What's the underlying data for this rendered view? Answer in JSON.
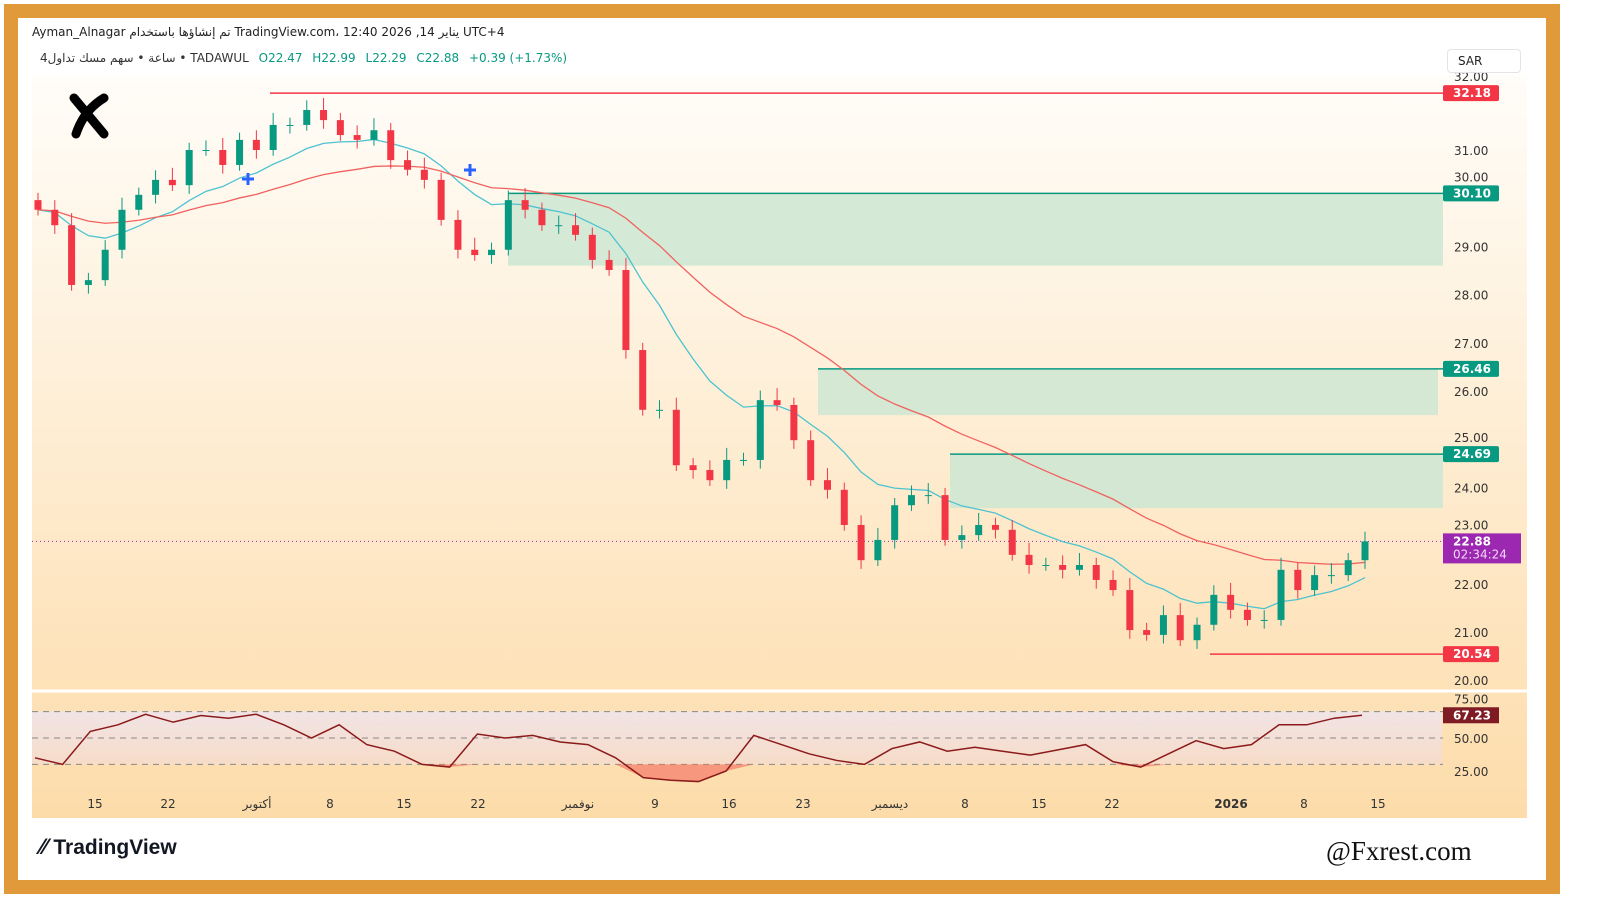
{
  "header": {
    "line1": "Ayman_Alnagar تم إنشاؤها باستخدام TradingView.com، 12:40 2026 ,14 يناير UTC+4",
    "symbol": "4ساعة • سهم مسك تداول • TADAWUL",
    "open": "O22.47",
    "high": "H22.99",
    "low": "L22.29",
    "close": "C22.88",
    "change": "+0.39 (+1.73%)"
  },
  "currency": "SAR",
  "footer": {
    "brand": "TradingView",
    "watermark": "@Fxrest.com"
  },
  "colors": {
    "up": "#089981",
    "down": "#F23645",
    "fast_ma": "#4DC3D0",
    "slow_ma": "#F0625F",
    "zone": "#CDE6D2",
    "current": "#9C27B0",
    "border": "#E09A3A"
  },
  "chart_data": {
    "type": "candlestick",
    "timeframe": "4h",
    "ylim": [
      19.8,
      32.6
    ],
    "y_ticks": [
      "20.00",
      "21.00",
      "22.00",
      "23.00",
      "24.00",
      "25.00",
      "26.00",
      "27.00",
      "28.00",
      "29.00",
      "30.00",
      "31.00",
      "32.00"
    ],
    "x_ticks": [
      "15",
      "22",
      "أكتوبر",
      "8",
      "15",
      "22",
      "نوفمبر",
      "9",
      "16",
      "23",
      "ديسمبر",
      "8",
      "15",
      "22",
      "2026",
      "8",
      "15"
    ],
    "closes": [
      29.76,
      29.44,
      28.2,
      28.3,
      28.93,
      29.76,
      30.07,
      30.38,
      30.27,
      31.0,
      31.0,
      30.69,
      31.21,
      31.0,
      31.52,
      31.52,
      31.83,
      31.62,
      31.31,
      31.21,
      31.41,
      30.79,
      30.59,
      30.38,
      29.55,
      28.93,
      28.82,
      28.93,
      29.96,
      29.76,
      29.44,
      29.44,
      29.24,
      28.72,
      28.51,
      26.85,
      25.61,
      25.61,
      24.46,
      24.36,
      24.15,
      24.57,
      24.57,
      25.81,
      25.71,
      24.98,
      24.15,
      23.95,
      23.22,
      22.49,
      22.91,
      23.63,
      23.84,
      23.84,
      22.91,
      23.01,
      23.22,
      23.12,
      22.6,
      22.39,
      22.39,
      22.29,
      22.39,
      22.08,
      21.87,
      21.04,
      20.94,
      21.35,
      20.83,
      21.15,
      21.77,
      21.46,
      21.25,
      21.25,
      22.29,
      21.87,
      22.18,
      22.18,
      22.49,
      22.88
    ],
    "levels": [
      {
        "price": 32.18,
        "label": "32.18",
        "color": "#F23645"
      },
      {
        "price": 20.54,
        "label": "20.54",
        "color": "#F23645"
      }
    ],
    "zones": [
      {
        "top": 30.1,
        "bottom": 28.6,
        "label": "30.10"
      },
      {
        "top": 26.46,
        "bottom": 25.5,
        "label": "26.46"
      },
      {
        "top": 24.69,
        "bottom": 23.57,
        "label": "24.69"
      }
    ],
    "current_price": {
      "label": "22.88",
      "countdown": "02:34:24"
    },
    "rsi": {
      "ticks": [
        "75.00",
        "50.00",
        "25.00"
      ],
      "bands": [
        70,
        50,
        30
      ],
      "current": "67.23",
      "values": [
        35,
        30,
        55,
        60,
        68,
        62,
        67,
        65,
        68,
        60,
        50,
        60,
        45,
        40,
        30,
        28,
        53,
        50,
        52,
        47,
        45,
        35,
        20,
        18,
        17,
        25,
        52,
        45,
        38,
        33,
        30,
        42,
        47,
        40,
        43,
        40,
        37,
        41,
        45,
        32,
        28,
        38,
        48,
        42,
        45,
        60,
        60,
        65,
        67.23
      ]
    }
  }
}
